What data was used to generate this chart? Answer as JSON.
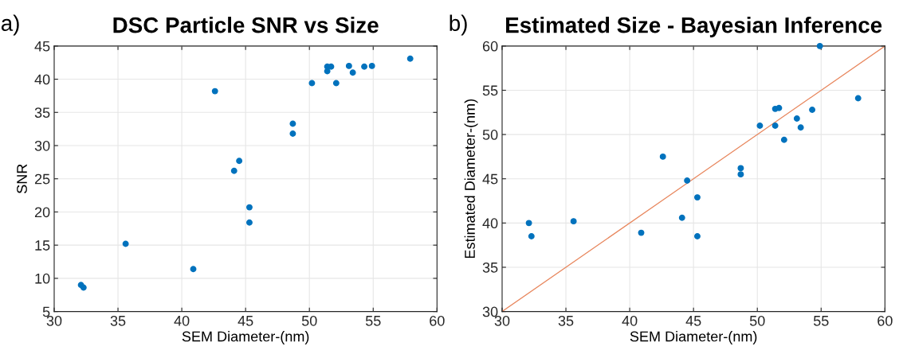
{
  "chart_data": [
    {
      "type": "scatter",
      "title": "DSC Particle SNR vs Size",
      "xlabel": "SEM Diameter-(nm)",
      "ylabel": "SNR",
      "annotations": [
        "a)"
      ],
      "series": [
        {
          "color": "#0072bd",
          "marker": "circle",
          "x": [
            32.1,
            32.3,
            35.6,
            40.9,
            42.6,
            44.1,
            44.5,
            45.3,
            45.3,
            48.7,
            48.7,
            50.2,
            51.4,
            51.4,
            51.7,
            52.1,
            53.1,
            53.4,
            54.3,
            54.9,
            57.9
          ],
          "values": [
            9.0,
            8.6,
            15.2,
            11.4,
            38.2,
            26.2,
            27.7,
            20.7,
            18.4,
            33.3,
            31.8,
            39.4,
            41.9,
            41.2,
            41.9,
            39.4,
            42.0,
            41.0,
            41.9,
            42.0,
            43.1
          ]
        }
      ],
      "xlim": [
        30,
        60
      ],
      "xticks": [
        30,
        35,
        40,
        45,
        50,
        55,
        60
      ],
      "ylim": [
        5,
        45
      ],
      "yticks": [
        5,
        10,
        15,
        20,
        25,
        30,
        35,
        40,
        45
      ],
      "grid": true
    },
    {
      "type": "scatter",
      "title": "Estimated Size - Bayesian Inference",
      "xlabel": "SEM Diameter-(nm)",
      "ylabel": "Estimated Diameter-(nm)",
      "annotations": [
        "b)"
      ],
      "series": [
        {
          "color": "#0072bd",
          "marker": "circle",
          "x": [
            32.1,
            32.3,
            35.6,
            40.9,
            42.6,
            44.1,
            44.5,
            45.3,
            45.3,
            48.7,
            48.7,
            50.2,
            51.4,
            51.4,
            51.7,
            52.1,
            53.1,
            53.4,
            54.3,
            54.9,
            57.9
          ],
          "values": [
            40.0,
            38.5,
            40.2,
            38.9,
            47.5,
            40.6,
            44.8,
            42.9,
            38.5,
            46.2,
            45.5,
            51.0,
            52.9,
            51.0,
            53.0,
            49.4,
            51.8,
            50.8,
            52.8,
            60.0,
            54.1
          ]
        },
        {
          "type": "line",
          "color": "#e8875e",
          "x": [
            30,
            60
          ],
          "values": [
            30,
            60
          ]
        }
      ],
      "xlim": [
        30,
        60
      ],
      "xticks": [
        30,
        35,
        40,
        45,
        50,
        55,
        60
      ],
      "ylim": [
        30,
        60
      ],
      "yticks": [
        30,
        35,
        40,
        45,
        50,
        55,
        60
      ],
      "grid": true
    }
  ]
}
